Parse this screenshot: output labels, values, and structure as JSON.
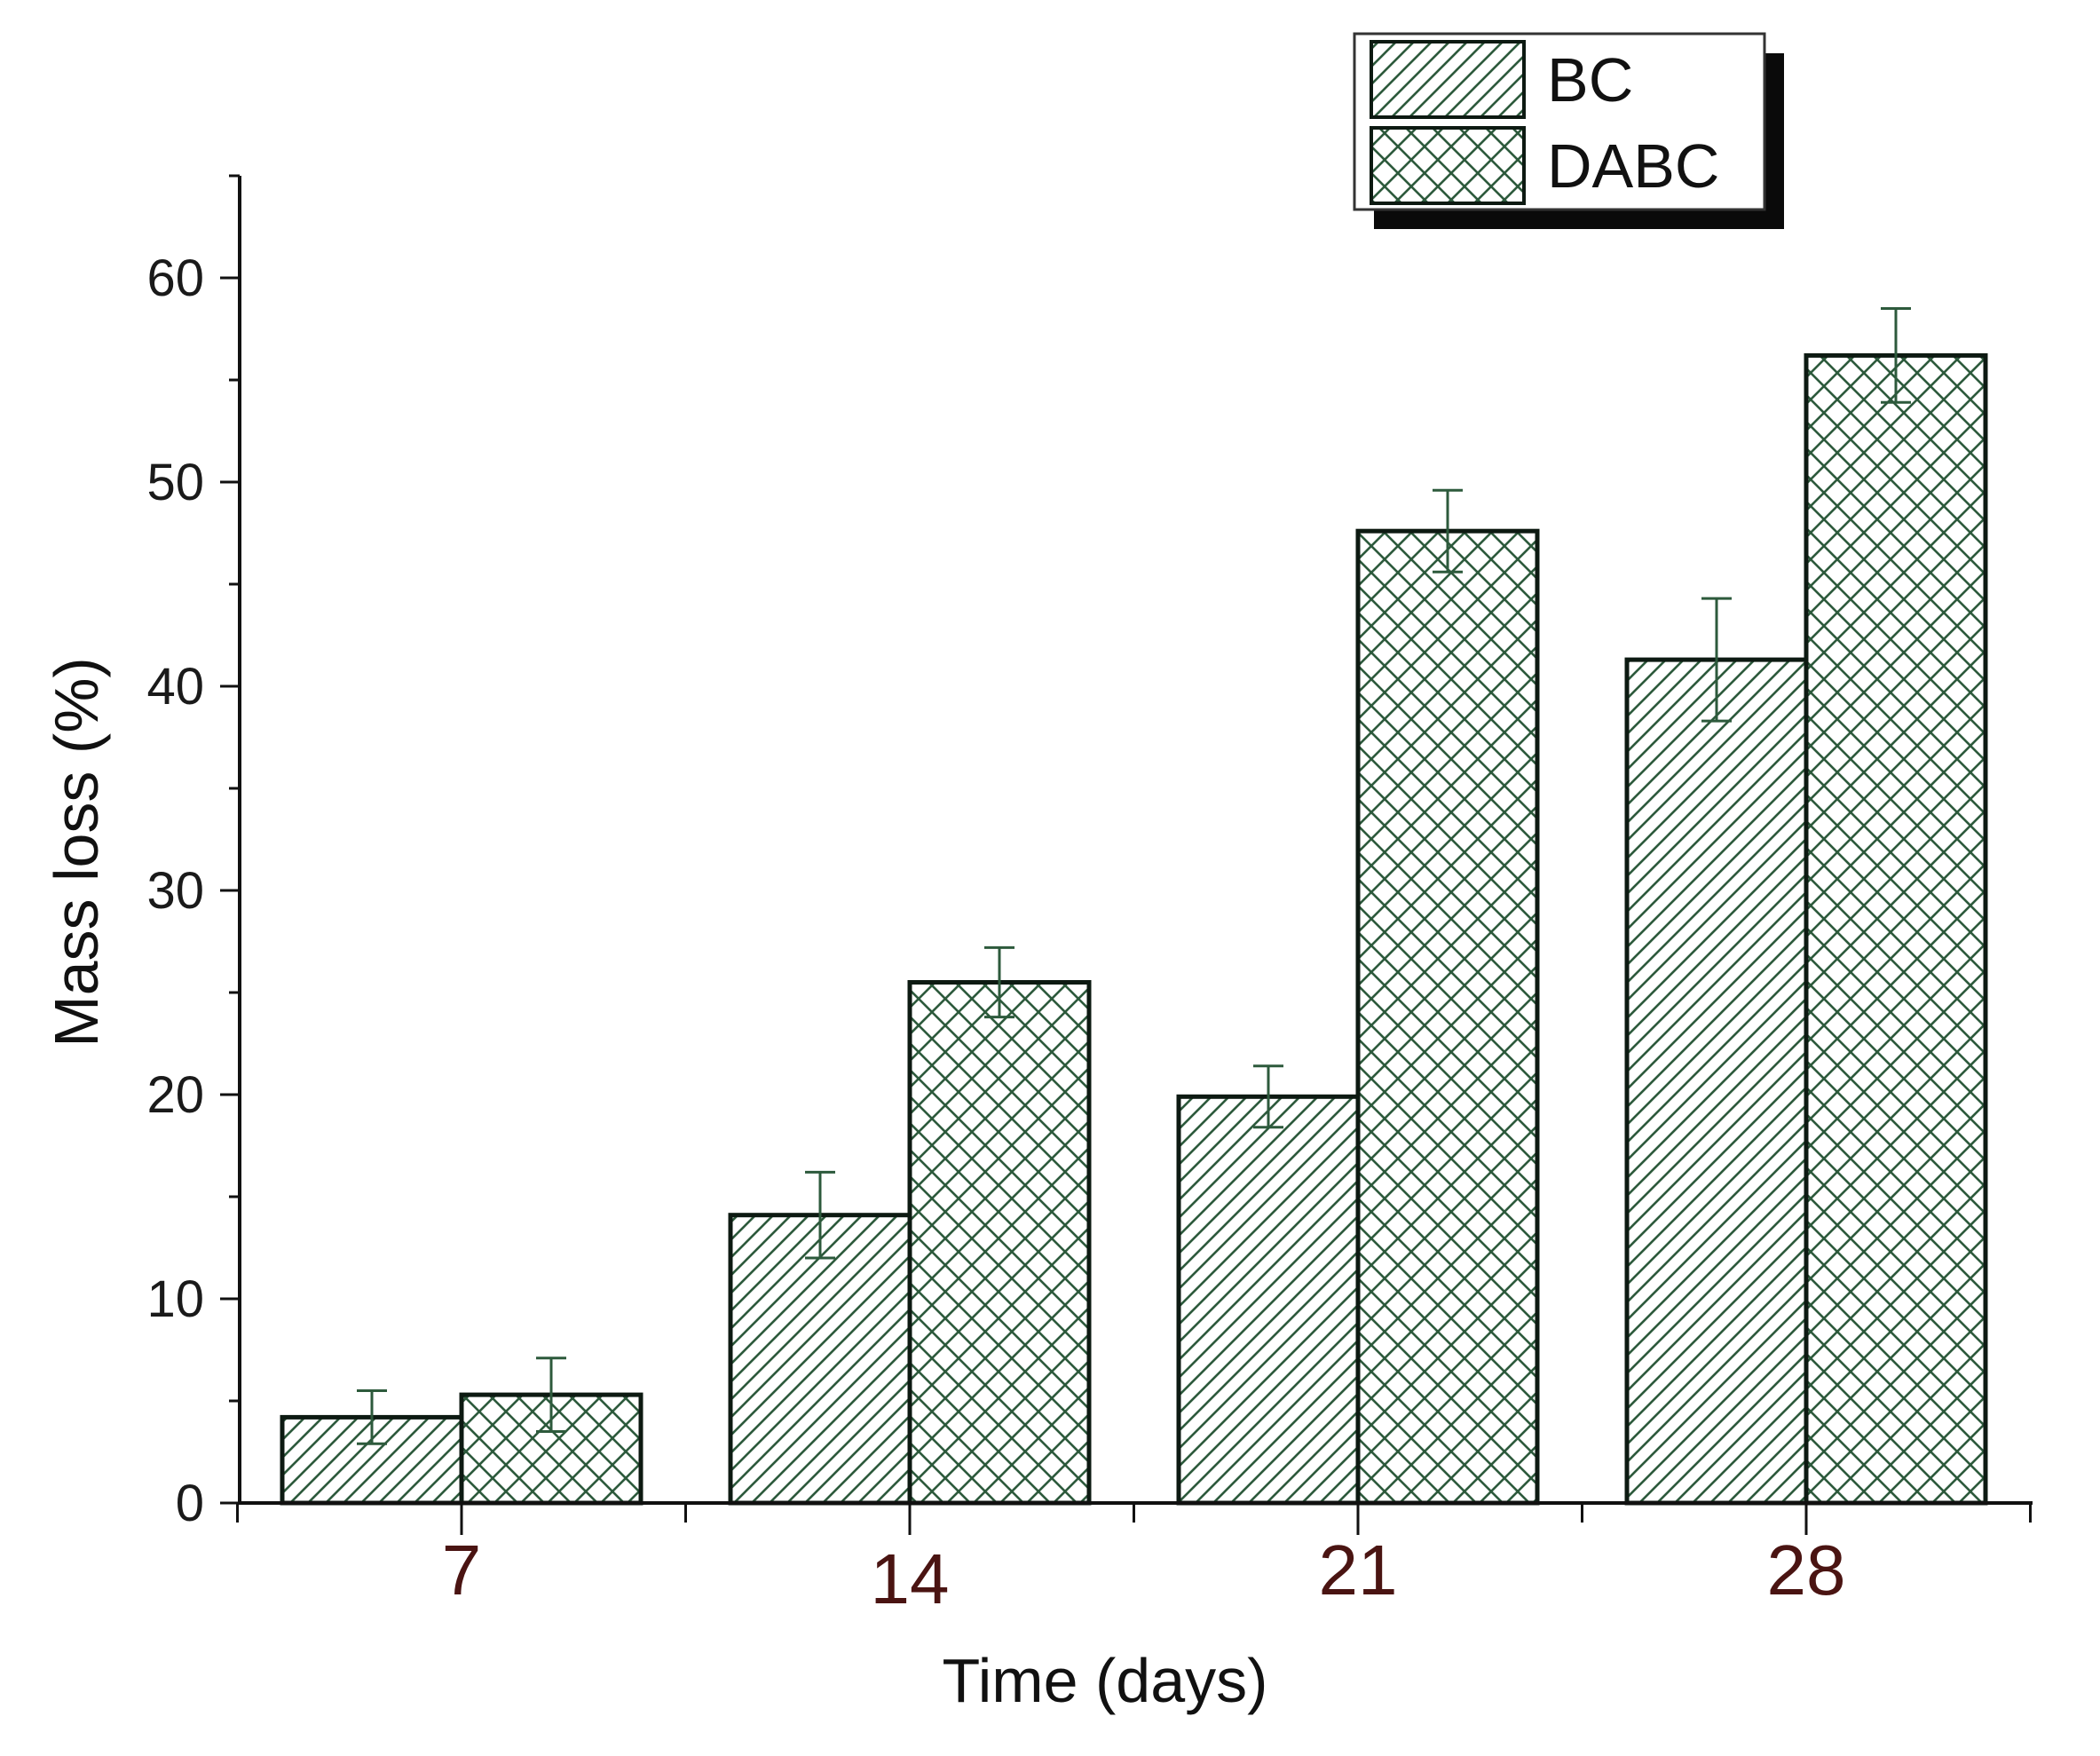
{
  "chart_data": {
    "type": "bar",
    "title": "",
    "xlabel": "Time (days)",
    "ylabel": "Mass loss (%)",
    "categories": [
      "7",
      "14",
      "21",
      "28"
    ],
    "ylim": [
      0,
      65
    ],
    "yticks": [
      0,
      10,
      20,
      30,
      40,
      50,
      60
    ],
    "grid": false,
    "legend_position": "top-right",
    "series": [
      {
        "name": "BC",
        "pattern": "diagonal-hatch",
        "values": [
          4.2,
          14.1,
          19.9,
          41.3
        ],
        "errors": [
          1.3,
          2.1,
          1.5,
          3.0
        ]
      },
      {
        "name": "DABC",
        "pattern": "cross-hatch",
        "values": [
          5.3,
          25.5,
          47.6,
          56.2
        ],
        "errors": [
          1.8,
          1.7,
          2.0,
          2.3
        ]
      }
    ],
    "colors": {
      "bar_stroke": "#0d1a12",
      "hatch": "#2d5a3c",
      "error_bar": "#2d5a3c",
      "x_tick_labels": "#4a1412",
      "axis": "#111111"
    }
  }
}
